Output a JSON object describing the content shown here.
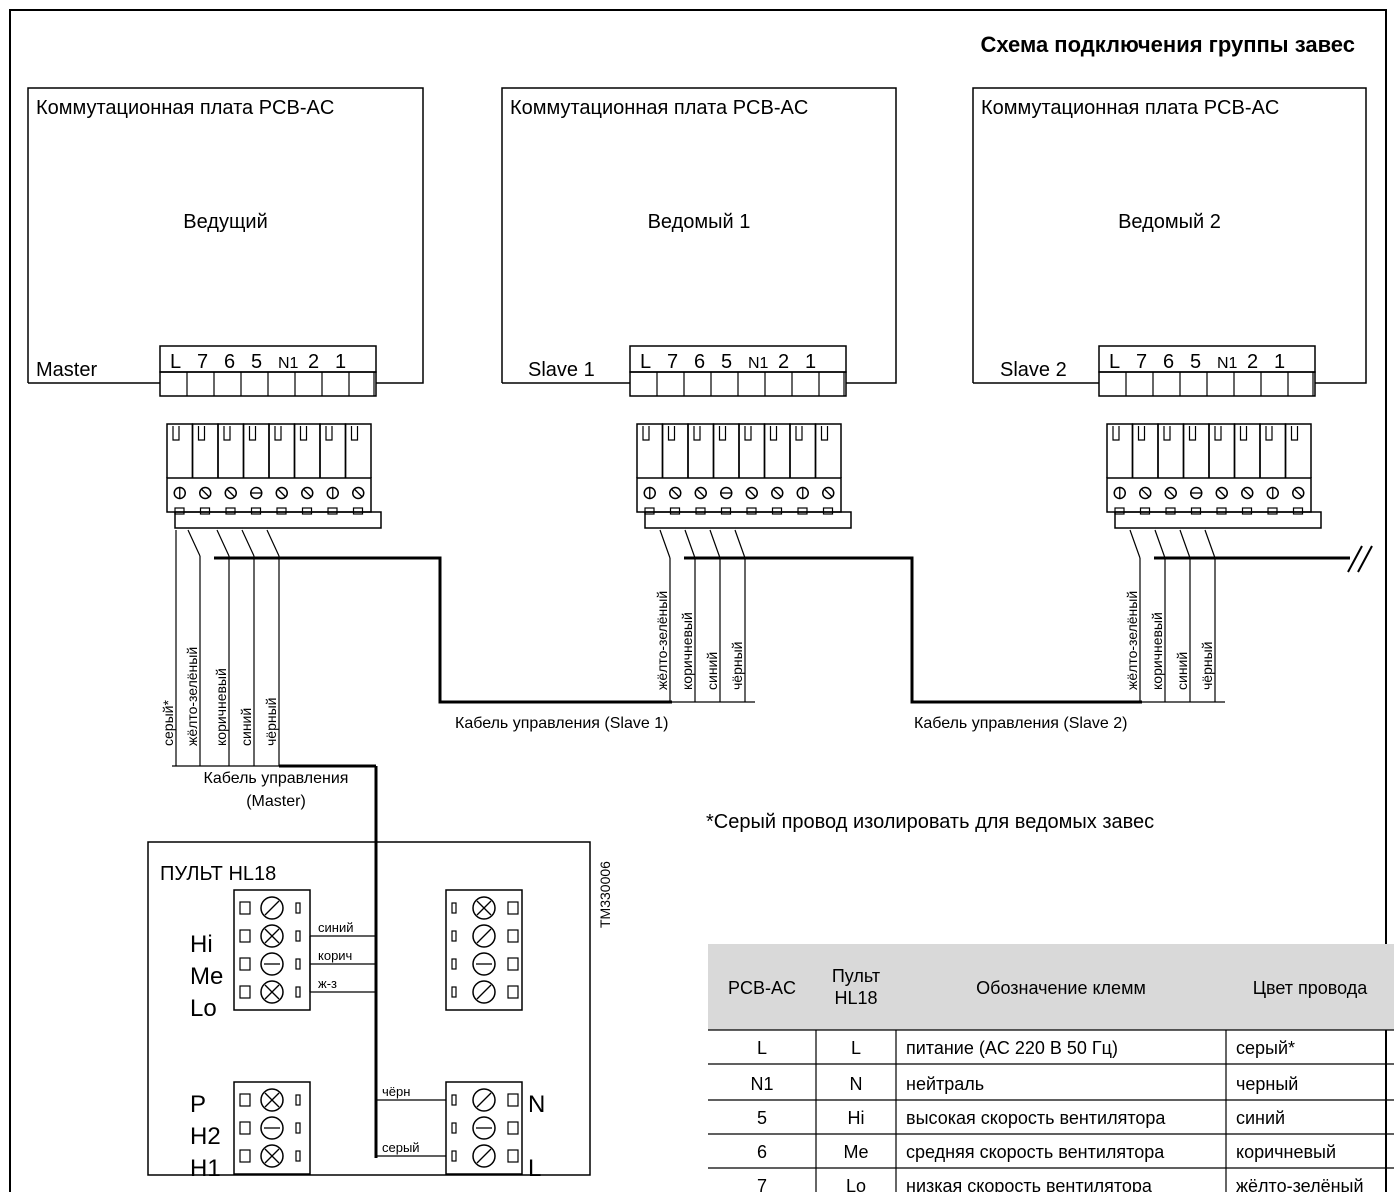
{
  "title": "Схема подключения группы завес",
  "boards": [
    {
      "board_label": "Коммутационная плата PCB-AC",
      "role": "Ведущий",
      "tag": "Master"
    },
    {
      "board_label": "Коммутационная плата PCB-AC",
      "role": "Ведомый 1",
      "tag": "Slave 1"
    },
    {
      "board_label": "Коммутационная плата PCB-AC",
      "role": "Ведомый 2",
      "tag": "Slave 2"
    }
  ],
  "terminal_labels": [
    "L",
    "7",
    "6",
    "5",
    "N1",
    "2",
    "1"
  ],
  "master_wires": [
    "серый*",
    "жёлто-зелёный",
    "коричневый",
    "синий",
    "чёрный"
  ],
  "slave_wires": [
    "жёлто-зелёный",
    "коричневый",
    "синий",
    "чёрный"
  ],
  "cables": {
    "master_line1": "Кабель управления",
    "master_line2": "(Master)",
    "slave1": "Кабель управления (Slave 1)",
    "slave2": "Кабель управления (Slave 2)"
  },
  "footnote": "*Серый провод изолировать для ведомых завес",
  "doc_code": "TM330006",
  "remote": {
    "title": "ПУЛЬТ HL18",
    "left_labels": [
      "Hi",
      "Me",
      "Lo"
    ],
    "lower_labels": [
      "P",
      "H2",
      "H1"
    ],
    "right_labels": [
      "N",
      "L"
    ],
    "wire_labels": [
      "синий",
      "корич",
      "ж-з",
      "чёрн",
      "серый"
    ]
  },
  "table": {
    "headers": [
      "PCB-AC",
      "Пульт\nHL18",
      "Обозначение клемм",
      "Цвет провода"
    ],
    "rows": [
      [
        "L",
        "L",
        "питание (AC 220 В 50 Гц)",
        "серый*"
      ],
      [
        "N1",
        "N",
        "нейтраль",
        "черный"
      ],
      [
        "5",
        "Hi",
        "высокая скорость вентилятора",
        "синий"
      ],
      [
        "6",
        "Me",
        "средняя скорость вентилятора",
        "коричневый"
      ],
      [
        "7",
        "Lo",
        "низкая скорость вентилятора",
        "жёлто-зелёный"
      ]
    ]
  },
  "colors": {
    "line": "#000000",
    "table_header_bg": "#d9d9d9"
  }
}
